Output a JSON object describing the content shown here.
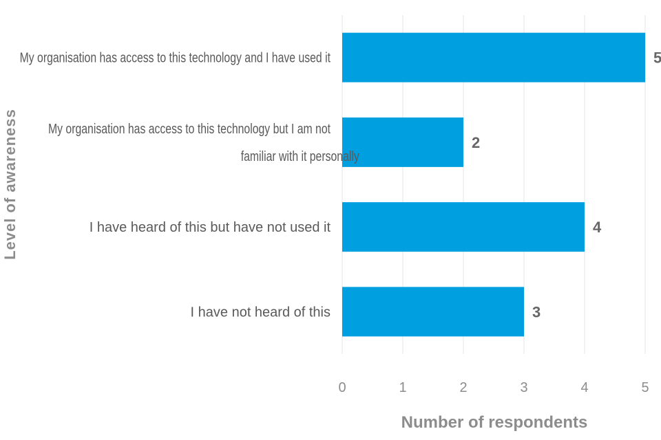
{
  "chart_data": {
    "type": "bar",
    "orientation": "horizontal",
    "categories": [
      "My organisation has access to this technology and I have used it",
      "My organisation has access to this technology but I am not familiar with it personally",
      "I have heard of this but have not used it",
      "I have not heard of this"
    ],
    "category_lines": [
      [
        "My organisation has access to this technology and I have used it"
      ],
      [
        "My organisation has access to this technology but I am not",
        "familiar with it personally"
      ],
      [
        "I have heard of this but have not used it"
      ],
      [
        "I have not heard of this"
      ]
    ],
    "values": [
      5,
      2,
      4,
      3
    ],
    "xlabel": "Number of respondents",
    "ylabel": "Level of awareness",
    "xlim": [
      0,
      5
    ],
    "xticks": [
      "0",
      "1",
      "2",
      "3",
      "4",
      "5"
    ],
    "grid": true,
    "bar_color": "#009fdf",
    "data_labels": true
  }
}
